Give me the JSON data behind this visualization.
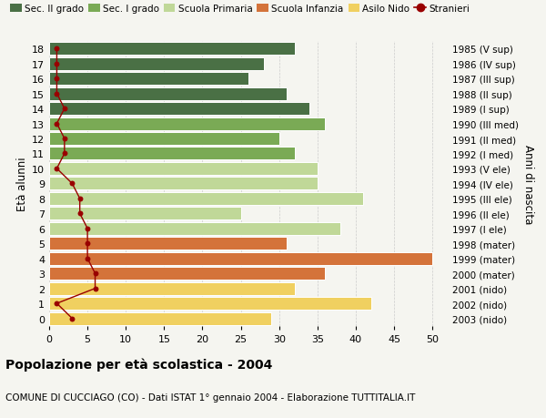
{
  "ages": [
    18,
    17,
    16,
    15,
    14,
    13,
    12,
    11,
    10,
    9,
    8,
    7,
    6,
    5,
    4,
    3,
    2,
    1,
    0
  ],
  "years": [
    "1985 (V sup)",
    "1986 (IV sup)",
    "1987 (III sup)",
    "1988 (II sup)",
    "1989 (I sup)",
    "1990 (III med)",
    "1991 (II med)",
    "1992 (I med)",
    "1993 (V ele)",
    "1994 (IV ele)",
    "1995 (III ele)",
    "1996 (II ele)",
    "1997 (I ele)",
    "1998 (mater)",
    "1999 (mater)",
    "2000 (mater)",
    "2001 (nido)",
    "2002 (nido)",
    "2003 (nido)"
  ],
  "bar_values": [
    32,
    28,
    26,
    31,
    34,
    36,
    30,
    32,
    35,
    35,
    41,
    25,
    38,
    31,
    50,
    36,
    32,
    42,
    29
  ],
  "bar_colors": [
    "#4a7045",
    "#4a7045",
    "#4a7045",
    "#4a7045",
    "#4a7045",
    "#7aaa55",
    "#7aaa55",
    "#7aaa55",
    "#c0d898",
    "#c0d898",
    "#c0d898",
    "#c0d898",
    "#c0d898",
    "#d4733a",
    "#d4733a",
    "#d4733a",
    "#f0d060",
    "#f0d060",
    "#f0d060"
  ],
  "stranieri_values": [
    1,
    1,
    1,
    1,
    2,
    1,
    2,
    2,
    1,
    3,
    4,
    4,
    5,
    5,
    5,
    6,
    6,
    1,
    3
  ],
  "stranieri_color": "#990000",
  "xlim": [
    0,
    52
  ],
  "xticks": [
    0,
    5,
    10,
    15,
    20,
    25,
    30,
    35,
    40,
    45,
    50
  ],
  "legend_labels": [
    "Sec. II grado",
    "Sec. I grado",
    "Scuola Primaria",
    "Scuola Infanzia",
    "Asilo Nido",
    "Stranieri"
  ],
  "legend_colors": [
    "#4a7045",
    "#7aaa55",
    "#c0d898",
    "#d4733a",
    "#f0d060",
    "#990000"
  ],
  "title_bold": "Popolazione per età scolastica - 2004",
  "subtitle": "COMUNE DI CUCCIAGO (CO) - Dati ISTAT 1° gennaio 2004 - Elaborazione TUTTITALIA.IT",
  "ylabel_left": "Età alunni",
  "ylabel_right": "Anni di nascita",
  "bg_color": "#f5f5f0",
  "bar_edge_color": "#ffffff",
  "grid_color": "#cccccc"
}
